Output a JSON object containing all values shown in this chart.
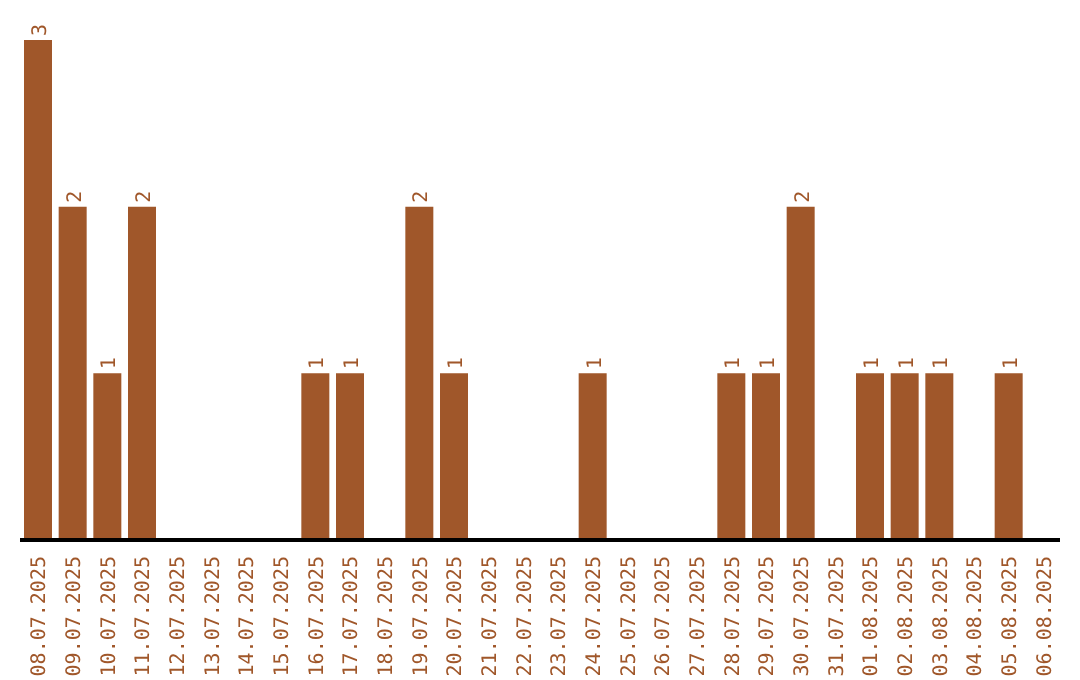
{
  "chart_data": {
    "type": "bar",
    "categories": [
      "08.07.2025",
      "09.07.2025",
      "10.07.2025",
      "11.07.2025",
      "12.07.2025",
      "13.07.2025",
      "14.07.2025",
      "15.07.2025",
      "16.07.2025",
      "17.07.2025",
      "18.07.2025",
      "19.07.2025",
      "20.07.2025",
      "21.07.2025",
      "22.07.2025",
      "23.07.2025",
      "24.07.2025",
      "25.07.2025",
      "26.07.2025",
      "27.07.2025",
      "28.07.2025",
      "29.07.2025",
      "30.07.2025",
      "31.07.2025",
      "01.08.2025",
      "02.08.2025",
      "03.08.2025",
      "04.08.2025",
      "05.08.2025",
      "06.08.2025"
    ],
    "values": [
      3,
      2,
      1,
      2,
      0,
      0,
      0,
      0,
      1,
      1,
      0,
      2,
      1,
      0,
      0,
      0,
      1,
      0,
      0,
      0,
      1,
      1,
      2,
      0,
      1,
      1,
      1,
      0,
      1,
      0
    ],
    "value_labels": [
      "3",
      "2",
      "1",
      "2",
      null,
      null,
      null,
      null,
      "1",
      "1",
      null,
      "2",
      "1",
      null,
      null,
      null,
      "1",
      null,
      null,
      null,
      "1",
      "1",
      "2",
      null,
      "1",
      "1",
      "1",
      null,
      "1",
      null
    ],
    "color": "#a0572a",
    "grid": false,
    "legend": false
  }
}
